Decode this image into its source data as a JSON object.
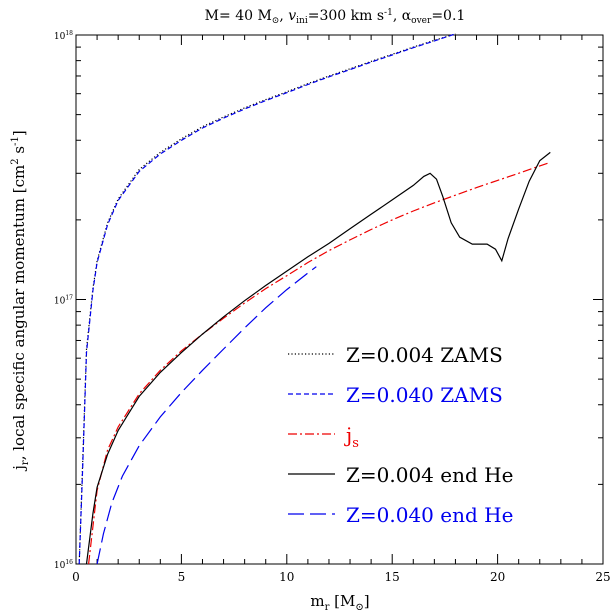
{
  "title": {
    "prefix": "M=  40 M",
    "sun": "⊙",
    "v": "v",
    "v_sub": "ini",
    "v_val": "=300  km s",
    "v_exp": "-1",
    "alpha": ",  α",
    "alpha_sub": "over",
    "alpha_val": "=0.1"
  },
  "axes": {
    "xlabel_main": "m",
    "xlabel_sub": "r",
    "xlabel_unit": " [M",
    "xlabel_sun": "⊙",
    "xlabel_close": "]",
    "ylabel_main": "j",
    "ylabel_sub": "r",
    "ylabel_text": ", local specific angular momentum [cm",
    "ylabel_exp1": "2",
    "ylabel_s": " s",
    "ylabel_exp2": "-1",
    "ylabel_close": "]"
  },
  "chart_data": {
    "type": "line",
    "xlim": [
      0,
      25
    ],
    "ylim": [
      1e+16,
      1e+18
    ],
    "yscale": "log",
    "grid": false,
    "legend_position": "bottom-right",
    "x_ticks": [
      "0",
      "5",
      "10",
      "15",
      "20",
      "25"
    ],
    "y_ticks": [
      {
        "value": 1e+16,
        "label": "10",
        "exp": "16"
      },
      {
        "value": 1e+17,
        "label": "10",
        "exp": "17"
      },
      {
        "value": 1e+18,
        "label": "10",
        "exp": "18"
      }
    ],
    "series": [
      {
        "name": "Z=0.004  ZAMS",
        "color": "#000000",
        "dash": "dotted",
        "points": [
          [
            0.15,
            1e+16
          ],
          [
            0.3,
            2.2e+16
          ],
          [
            0.5,
            6.5e+16
          ],
          [
            0.8,
            1.1e+17
          ],
          [
            1,
            1.4e+17
          ],
          [
            1.5,
            1.95e+17
          ],
          [
            2,
            2.4e+17
          ],
          [
            3,
            3.1e+17
          ],
          [
            4,
            3.6e+17
          ],
          [
            5,
            4.05e+17
          ],
          [
            6,
            4.5e+17
          ],
          [
            7,
            4.9e+17
          ],
          [
            8,
            5.3e+17
          ],
          [
            9,
            5.7e+17
          ],
          [
            10,
            6.1e+17
          ],
          [
            11,
            6.55e+17
          ],
          [
            12,
            7e+17
          ],
          [
            13,
            7.45e+17
          ],
          [
            14,
            7.95e+17
          ],
          [
            15,
            8.45e+17
          ],
          [
            16,
            9e+17
          ],
          [
            17,
            9.55e+17
          ],
          [
            18,
            1.01e+18
          ]
        ]
      },
      {
        "name": "Z=0.040  ZAMS",
        "color": "#0000ee",
        "dash": "short",
        "points": [
          [
            0.15,
            1e+16
          ],
          [
            0.3,
            2.1e+16
          ],
          [
            0.5,
            6.3e+16
          ],
          [
            0.8,
            1.08e+17
          ],
          [
            1,
            1.38e+17
          ],
          [
            1.5,
            1.92e+17
          ],
          [
            2,
            2.37e+17
          ],
          [
            3,
            3.05e+17
          ],
          [
            4,
            3.55e+17
          ],
          [
            5,
            4e+17
          ],
          [
            6,
            4.45e+17
          ],
          [
            7,
            4.85e+17
          ],
          [
            8,
            5.25e+17
          ],
          [
            9,
            5.65e+17
          ],
          [
            10,
            6.05e+17
          ],
          [
            11,
            6.5e+17
          ],
          [
            12,
            6.95e+17
          ],
          [
            13,
            7.4e+17
          ],
          [
            14,
            7.9e+17
          ],
          [
            15,
            8.4e+17
          ],
          [
            16,
            8.95e+17
          ],
          [
            17,
            9.5e+17
          ],
          [
            18,
            1.01e+18
          ]
        ]
      },
      {
        "name": "j",
        "name_sub": "s",
        "color": "#ee0000",
        "dash": "dashdot",
        "points": [
          [
            0.6,
            1e+16
          ],
          [
            1,
            1.9e+16
          ],
          [
            1.5,
            2.7e+16
          ],
          [
            2,
            3.3e+16
          ],
          [
            3,
            4.4e+16
          ],
          [
            4,
            5.4e+16
          ],
          [
            5,
            6.4e+16
          ],
          [
            6,
            7.4e+16
          ],
          [
            7,
            8.5e+16
          ],
          [
            8,
            9.7e+16
          ],
          [
            9,
            1.1e+17
          ],
          [
            10,
            1.23e+17
          ],
          [
            11,
            1.38e+17
          ],
          [
            12,
            1.53e+17
          ],
          [
            13,
            1.68e+17
          ],
          [
            14,
            1.84e+17
          ],
          [
            15,
            2e+17
          ],
          [
            16,
            2.16e+17
          ],
          [
            17,
            2.32e+17
          ],
          [
            18,
            2.48e+17
          ],
          [
            19,
            2.65e+17
          ],
          [
            20,
            2.82e+17
          ],
          [
            21,
            3e+17
          ],
          [
            22,
            3.2e+17
          ],
          [
            22.5,
            3.3e+17
          ]
        ]
      },
      {
        "name": "Z=0.004  end He",
        "color": "#000000",
        "dash": "solid",
        "points": [
          [
            0.5,
            1e+16
          ],
          [
            0.8,
            1.55e+16
          ],
          [
            1,
            1.95e+16
          ],
          [
            1.5,
            2.6e+16
          ],
          [
            2,
            3.2e+16
          ],
          [
            3,
            4.3e+16
          ],
          [
            4,
            5.3e+16
          ],
          [
            5,
            6.3e+16
          ],
          [
            6,
            7.4e+16
          ],
          [
            7,
            8.6e+16
          ],
          [
            8,
            9.9e+16
          ],
          [
            9,
            1.13e+17
          ],
          [
            10,
            1.28e+17
          ],
          [
            11,
            1.45e+17
          ],
          [
            12,
            1.63e+17
          ],
          [
            13,
            1.85e+17
          ],
          [
            14,
            2.1e+17
          ],
          [
            15,
            2.38e+17
          ],
          [
            16,
            2.7e+17
          ],
          [
            16.5,
            2.92e+17
          ],
          [
            16.8,
            3e+17
          ],
          [
            17.1,
            2.85e+17
          ],
          [
            17.4,
            2.45e+17
          ],
          [
            17.8,
            1.95e+17
          ],
          [
            18.2,
            1.72e+17
          ],
          [
            18.8,
            1.62e+17
          ],
          [
            19.5,
            1.62e+17
          ],
          [
            19.9,
            1.55e+17
          ],
          [
            20.2,
            1.4e+17
          ],
          [
            20.5,
            1.7e+17
          ],
          [
            21,
            2.2e+17
          ],
          [
            21.5,
            2.8e+17
          ],
          [
            22,
            3.35e+17
          ],
          [
            22.5,
            3.6e+17
          ]
        ]
      },
      {
        "name": "Z=0.040  end He",
        "color": "#0000ee",
        "dash": "long",
        "points": [
          [
            1.0,
            1e+16
          ],
          [
            1.3,
            1.3e+16
          ],
          [
            1.7,
            1.7e+16
          ],
          [
            2.2,
            2.15e+16
          ],
          [
            3,
            2.8e+16
          ],
          [
            4,
            3.6e+16
          ],
          [
            5,
            4.45e+16
          ],
          [
            6,
            5.4e+16
          ],
          [
            7,
            6.5e+16
          ],
          [
            8,
            7.8e+16
          ],
          [
            9,
            9.3e+16
          ],
          [
            10,
            1.09e+17
          ],
          [
            11,
            1.26e+17
          ],
          [
            11.4,
            1.33e+17
          ]
        ]
      }
    ]
  }
}
